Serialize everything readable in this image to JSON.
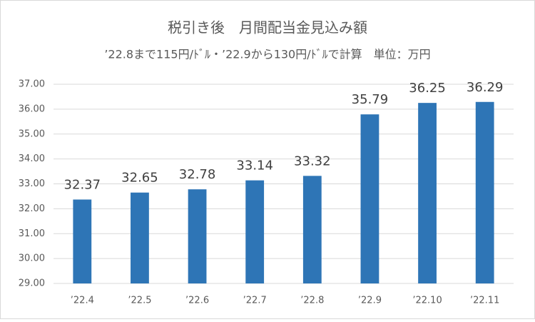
{
  "chart_data": {
    "type": "bar",
    "title": "税引き後　月間配当金見込み額",
    "subtitle": "’22.8まで115円/ﾄﾞﾙ・’22.9から130円/ﾄﾞﾙで計算　単位：万円",
    "categories": [
      "’22.4",
      "’22.5",
      "’22.6",
      "’22.7",
      "’22.8",
      "’22.9",
      "’22.10",
      "’22.11"
    ],
    "values": [
      32.37,
      32.65,
      32.78,
      33.14,
      33.32,
      35.79,
      36.25,
      36.29
    ],
    "color": "#2e75b6",
    "ylim": [
      29,
      37
    ],
    "yticks": [
      {
        "value": 29,
        "label": "29.00"
      },
      {
        "value": 30,
        "label": "30.00"
      },
      {
        "value": 31,
        "label": "31.00"
      },
      {
        "value": 32,
        "label": "32.00"
      },
      {
        "value": 33,
        "label": "33.00"
      },
      {
        "value": 34,
        "label": "34.00"
      },
      {
        "value": 35,
        "label": "35.00"
      },
      {
        "value": 36,
        "label": "36.00"
      },
      {
        "value": 37,
        "label": "37.00"
      }
    ],
    "grid": true
  }
}
